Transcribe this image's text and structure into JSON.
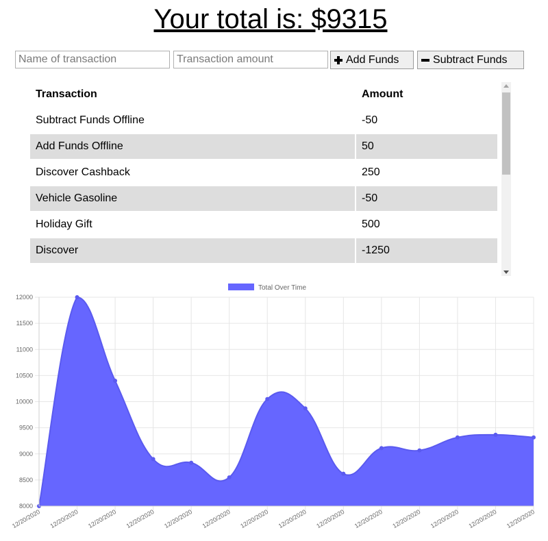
{
  "header": {
    "total_text": "Your total is: $9315"
  },
  "form": {
    "name_placeholder": "Name of transaction",
    "amount_placeholder": "Transaction amount",
    "add_label": "Add Funds",
    "subtract_label": "Subtract Funds"
  },
  "table": {
    "headers": [
      "Transaction",
      "Amount"
    ],
    "rows": [
      {
        "name": "Subtract Funds Offline",
        "amount": "-50"
      },
      {
        "name": "Add Funds Offline",
        "amount": "50"
      },
      {
        "name": "Discover Cashback",
        "amount": "250"
      },
      {
        "name": "Vehicle Gasoline",
        "amount": "-50"
      },
      {
        "name": "Holiday Gift",
        "amount": "500"
      },
      {
        "name": "Discover",
        "amount": "-1250"
      }
    ]
  },
  "chart_data": {
    "type": "area",
    "legend": "Total Over Time",
    "legend_position": "top",
    "color": "#6666ff",
    "grid": true,
    "x": [
      "12/20/2020",
      "12/20/2020",
      "12/20/2020",
      "12/20/2020",
      "12/20/2020",
      "12/20/2020",
      "12/20/2020",
      "12/20/2020",
      "12/20/2020",
      "12/20/2020",
      "12/20/2020",
      "12/20/2020",
      "12/20/2020",
      "12/20/2020"
    ],
    "values": [
      8000,
      12000,
      10400,
      8900,
      8830,
      8550,
      10050,
      9870,
      8620,
      9110,
      9065,
      9315,
      9365,
      9315
    ],
    "ylim": [
      8000,
      12000
    ],
    "yticks": [
      8000,
      8500,
      9000,
      9500,
      10000,
      10500,
      11000,
      11500,
      12000
    ]
  }
}
